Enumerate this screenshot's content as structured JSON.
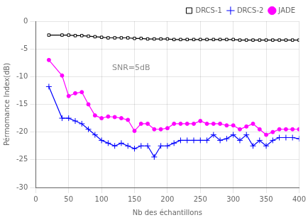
{
  "chart_data": {
    "type": "line",
    "x_label": "Nb des échantillons",
    "y_label": "Pérmomance Index(dB)",
    "annotations": [
      "SNR=5dB"
    ],
    "x": [
      20,
      40,
      50,
      60,
      70,
      80,
      90,
      100,
      110,
      120,
      130,
      140,
      150,
      160,
      170,
      180,
      190,
      200,
      210,
      220,
      230,
      240,
      250,
      260,
      270,
      280,
      290,
      300,
      310,
      320,
      330,
      340,
      350,
      360,
      370,
      380,
      390,
      400
    ],
    "series": [
      {
        "name": "DRCS-1",
        "color": "#000000",
        "marker": "square",
        "line_style": "solid",
        "values": [
          -2.5,
          -2.5,
          -2.5,
          -2.6,
          -2.6,
          -2.7,
          -2.8,
          -2.9,
          -3.0,
          -3.0,
          -3.0,
          -3.0,
          -3.1,
          -3.1,
          -3.2,
          -3.2,
          -3.2,
          -3.2,
          -3.3,
          -3.3,
          -3.3,
          -3.3,
          -3.3,
          -3.3,
          -3.3,
          -3.3,
          -3.3,
          -3.3,
          -3.4,
          -3.4,
          -3.4,
          -3.4,
          -3.4,
          -3.4,
          -3.4,
          -3.4,
          -3.4,
          -3.4
        ]
      },
      {
        "name": "DRCS-2",
        "color": "#0000ff",
        "marker": "plus",
        "line_style": "solid",
        "values": [
          -11.8,
          -17.5,
          -17.5,
          -18.0,
          -18.5,
          -19.5,
          -20.5,
          -21.5,
          -22.0,
          -22.5,
          -22.0,
          -22.5,
          -23.0,
          -22.5,
          -22.5,
          -24.5,
          -22.5,
          -22.5,
          -22.0,
          -21.5,
          -21.5,
          -21.5,
          -21.5,
          -21.5,
          -20.5,
          -21.5,
          -21.2,
          -20.5,
          -21.5,
          -20.5,
          -22.5,
          -21.5,
          -22.5,
          -21.5,
          -21.0,
          -21.0,
          -21.0,
          -21.2
        ]
      },
      {
        "name": "JADE",
        "color": "#ff00ff",
        "marker": "circle",
        "line_style": "solid",
        "values": [
          -7.0,
          -9.8,
          -13.5,
          -13.0,
          -12.8,
          -15.0,
          -17.0,
          -17.5,
          -17.2,
          -17.3,
          -17.5,
          -17.8,
          -19.8,
          -18.5,
          -18.5,
          -19.5,
          -19.5,
          -19.3,
          -18.5,
          -18.5,
          -18.5,
          -18.5,
          -18.0,
          -18.5,
          -18.5,
          -18.5,
          -18.8,
          -18.8,
          -19.5,
          -19.0,
          -18.5,
          -19.5,
          -20.5,
          -20.0,
          -19.5,
          -19.5,
          -19.5,
          -19.5
        ]
      }
    ],
    "xlim": [
      0,
      400
    ],
    "ylim": [
      -30,
      0
    ],
    "xticks": [
      0,
      50,
      100,
      150,
      200,
      250,
      300,
      350,
      400
    ],
    "yticks": [
      0,
      -5,
      -10,
      -15,
      -20,
      -25,
      -30
    ],
    "grid": true,
    "legend": "upper right"
  }
}
